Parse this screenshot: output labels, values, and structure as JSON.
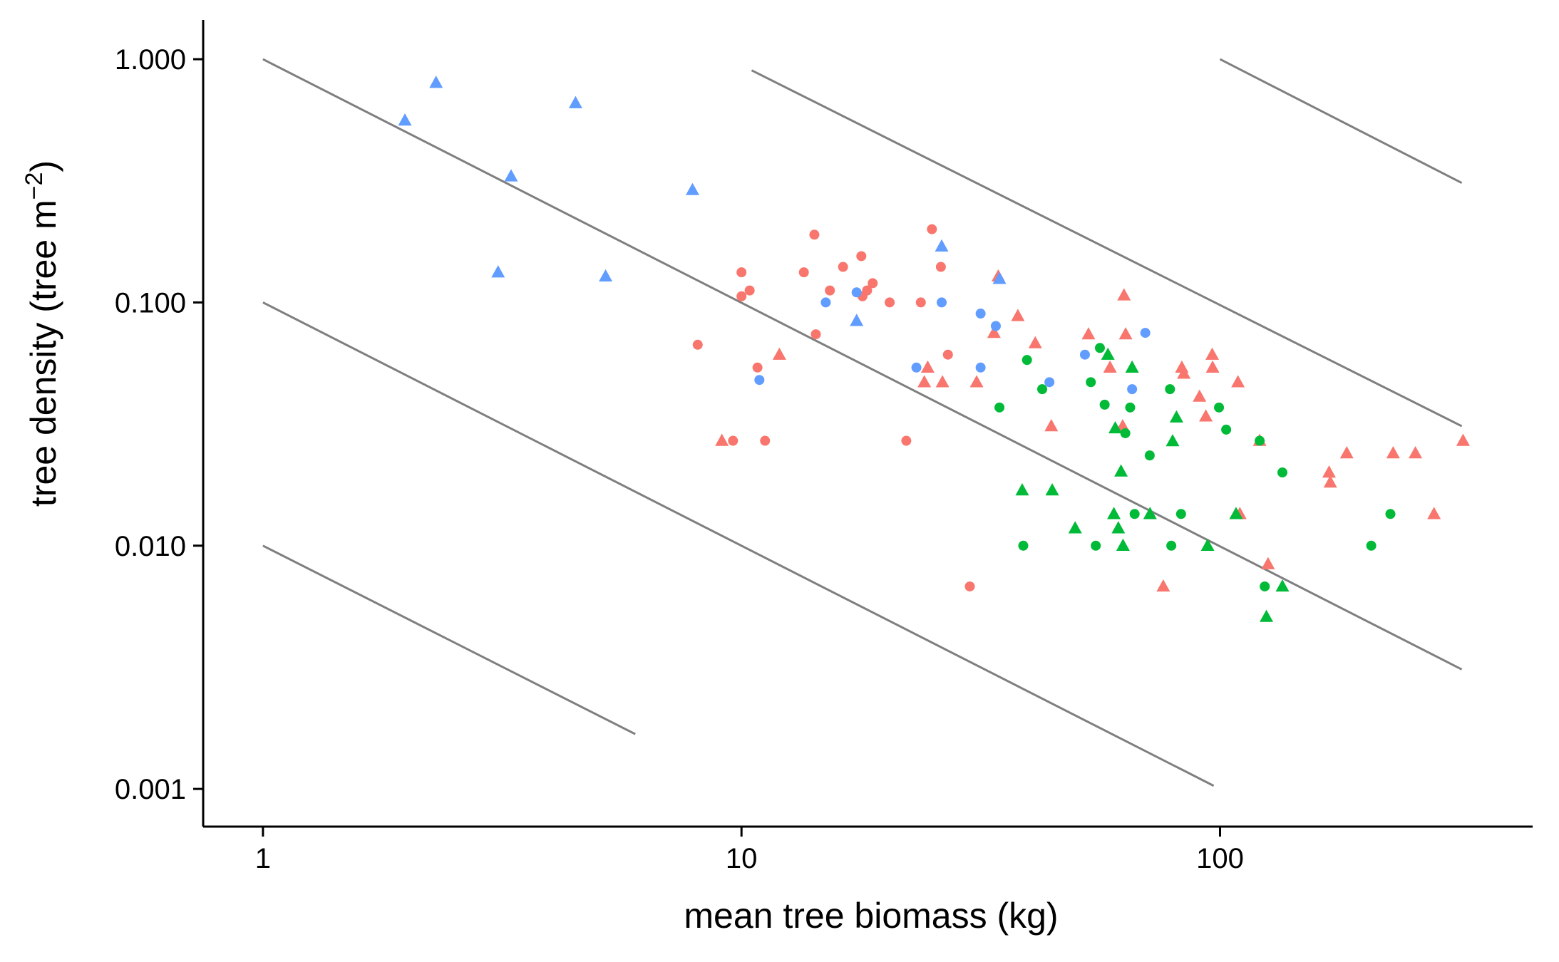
{
  "chart_data": {
    "type": "scatter",
    "title": "",
    "xlabel": "mean tree biomass (kg)",
    "ylabel": {
      "main": "tree density (tree m",
      "superscript": "−2",
      "close": ")"
    },
    "x_scale": "log10",
    "y_scale": "log10",
    "xlim": [
      0.75,
      450
    ],
    "ylim": [
      0.0007,
      1.45
    ],
    "x_ticks": [
      {
        "value": 1,
        "label": "1"
      },
      {
        "value": 10,
        "label": "10"
      },
      {
        "value": 100,
        "label": "100"
      }
    ],
    "y_ticks": [
      {
        "value": 1,
        "label": "1.000"
      },
      {
        "value": 0.1,
        "label": "0.100"
      },
      {
        "value": 0.01,
        "label": "0.010"
      },
      {
        "value": 0.001,
        "label": "0.001"
      }
    ],
    "grid": false,
    "legend": "none",
    "reference_lines": {
      "color": "#7f7f7f",
      "lines": [
        {
          "x": [
            1,
            6
          ],
          "y": [
            0.01,
            0.00168
          ]
        },
        {
          "x": [
            1,
            97
          ],
          "y": [
            0.1,
            0.00103
          ]
        },
        {
          "x": [
            1,
            320
          ],
          "y": [
            1.0,
            0.0031
          ]
        },
        {
          "x": [
            10.5,
            320
          ],
          "y": [
            0.9,
            0.031
          ]
        },
        {
          "x": [
            100,
            320
          ],
          "y": [
            1.0,
            0.31
          ]
        }
      ]
    },
    "series": [
      {
        "color": "#F8766D",
        "shape": "circle",
        "points": [
          [
            8.1,
            0.067
          ],
          [
            9.6,
            0.027
          ],
          [
            10.0,
            0.133
          ],
          [
            10.0,
            0.106
          ],
          [
            10.4,
            0.112
          ],
          [
            10.8,
            0.054
          ],
          [
            11.2,
            0.027
          ],
          [
            13.5,
            0.133
          ],
          [
            14.2,
            0.19
          ],
          [
            14.3,
            0.074
          ],
          [
            15.3,
            0.112
          ],
          [
            16.3,
            0.14
          ],
          [
            17.8,
            0.155
          ],
          [
            17.9,
            0.106
          ],
          [
            18.3,
            0.112
          ],
          [
            18.8,
            0.12
          ],
          [
            20.4,
            0.1
          ],
          [
            22.1,
            0.027
          ],
          [
            23.7,
            0.1
          ],
          [
            25.0,
            0.2
          ],
          [
            26.1,
            0.14
          ],
          [
            27.0,
            0.061
          ],
          [
            30.0,
            0.0068
          ]
        ]
      },
      {
        "color": "#F8766D",
        "shape": "triangle",
        "points": [
          [
            9.1,
            0.027
          ],
          [
            12.0,
            0.061
          ],
          [
            24.5,
            0.054
          ],
          [
            24.1,
            0.047
          ],
          [
            26.3,
            0.047
          ],
          [
            31.0,
            0.047
          ],
          [
            33.7,
            0.075
          ],
          [
            34.4,
            0.128
          ],
          [
            37.8,
            0.088
          ],
          [
            41.1,
            0.068
          ],
          [
            44.4,
            0.031
          ],
          [
            53.1,
            0.074
          ],
          [
            58.9,
            0.054
          ],
          [
            62.6,
            0.031
          ],
          [
            63.0,
            0.107
          ],
          [
            63.5,
            0.074
          ],
          [
            76.1,
            0.0068
          ],
          [
            83.2,
            0.054
          ],
          [
            84.0,
            0.051
          ],
          [
            90.6,
            0.041
          ],
          [
            93.4,
            0.034
          ],
          [
            96.3,
            0.061
          ],
          [
            96.5,
            0.054
          ],
          [
            109.0,
            0.047
          ],
          [
            110.0,
            0.0135
          ],
          [
            121.0,
            0.027
          ],
          [
            126.0,
            0.0084
          ],
          [
            169.0,
            0.02
          ],
          [
            170.0,
            0.0182
          ],
          [
            184.0,
            0.024
          ],
          [
            230.0,
            0.024
          ],
          [
            256.0,
            0.024
          ],
          [
            280.0,
            0.0135
          ],
          [
            322.0,
            0.027
          ]
        ]
      },
      {
        "color": "#00BA38",
        "shape": "circle",
        "points": [
          [
            34.6,
            0.037
          ],
          [
            38.8,
            0.01
          ],
          [
            39.5,
            0.058
          ],
          [
            42.5,
            0.044
          ],
          [
            53.7,
            0.047
          ],
          [
            55.0,
            0.01
          ],
          [
            56.1,
            0.065
          ],
          [
            57.4,
            0.038
          ],
          [
            63.4,
            0.029
          ],
          [
            64.9,
            0.037
          ],
          [
            66.3,
            0.0135
          ],
          [
            71.3,
            0.0235
          ],
          [
            78.6,
            0.044
          ],
          [
            79.1,
            0.01
          ],
          [
            82.9,
            0.0135
          ],
          [
            99.5,
            0.037
          ],
          [
            103.0,
            0.03
          ],
          [
            121.0,
            0.027
          ],
          [
            124.0,
            0.0068
          ],
          [
            135.0,
            0.02
          ],
          [
            207.0,
            0.01
          ],
          [
            227.0,
            0.0135
          ]
        ]
      },
      {
        "color": "#00BA38",
        "shape": "triangle",
        "points": [
          [
            38.6,
            0.0169
          ],
          [
            44.6,
            0.0169
          ],
          [
            49.8,
            0.0118
          ],
          [
            58.3,
            0.061
          ],
          [
            60.0,
            0.0135
          ],
          [
            60.4,
            0.0304
          ],
          [
            61.3,
            0.0118
          ],
          [
            62.1,
            0.0202
          ],
          [
            62.7,
            0.01
          ],
          [
            65.5,
            0.054
          ],
          [
            71.4,
            0.0135
          ],
          [
            79.6,
            0.0269
          ],
          [
            81.1,
            0.0337
          ],
          [
            94.2,
            0.01
          ],
          [
            108.0,
            0.0135
          ],
          [
            125.0,
            0.0051
          ],
          [
            135.0,
            0.0068
          ]
        ]
      },
      {
        "color": "#619CFF",
        "shape": "circle",
        "points": [
          [
            10.9,
            0.048
          ],
          [
            15.0,
            0.1
          ],
          [
            17.4,
            0.11
          ],
          [
            23.2,
            0.054
          ],
          [
            26.2,
            0.1
          ],
          [
            31.6,
            0.09
          ],
          [
            31.6,
            0.054
          ],
          [
            34.0,
            0.08
          ],
          [
            44.0,
            0.047
          ],
          [
            52.2,
            0.061
          ],
          [
            65.5,
            0.044
          ],
          [
            69.8,
            0.075
          ]
        ]
      },
      {
        "color": "#619CFF",
        "shape": "triangle",
        "points": [
          [
            1.98,
            0.56
          ],
          [
            2.3,
            0.8
          ],
          [
            3.1,
            0.133
          ],
          [
            3.3,
            0.33
          ],
          [
            4.5,
            0.66
          ],
          [
            5.2,
            0.128
          ],
          [
            7.9,
            0.29
          ],
          [
            17.4,
            0.084
          ],
          [
            26.2,
            0.17
          ],
          [
            34.6,
            0.125
          ]
        ]
      }
    ]
  }
}
